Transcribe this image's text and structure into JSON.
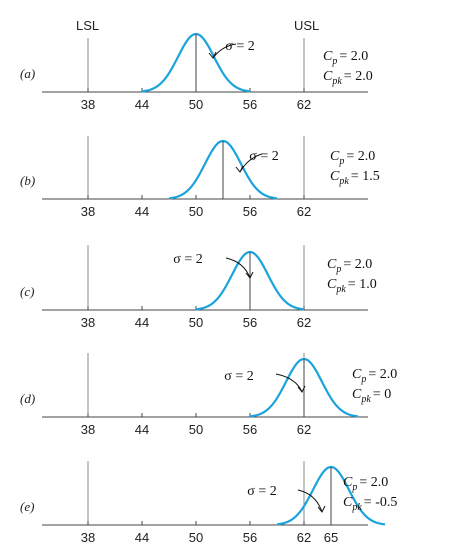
{
  "labels": {
    "lsl": "LSL",
    "usl": "USL"
  },
  "colors": {
    "curve": "#1aa3dd",
    "axis": "#444444",
    "limit": "#888888"
  },
  "axis": {
    "xmin": 33,
    "xmax": 70
  },
  "lsl_value": 38,
  "usl_value": 62,
  "panels": [
    {
      "id": "a",
      "label": "(a)",
      "mean": 50,
      "sigma": 2,
      "ticks": [
        "38",
        "44",
        "50",
        "56",
        "62"
      ],
      "tick_values": [
        38,
        44,
        50,
        56,
        62
      ],
      "sigma_label": "σ = 2",
      "cp_text": "= 2.0",
      "cpk_text": "= 2.0"
    },
    {
      "id": "b",
      "label": "(b)",
      "mean": 53,
      "sigma": 2,
      "ticks": [
        "38",
        "44",
        "50",
        "56",
        "62"
      ],
      "tick_values": [
        38,
        44,
        50,
        56,
        62
      ],
      "sigma_label": "σ = 2",
      "cp_text": "= 2.0",
      "cpk_text": "= 1.5"
    },
    {
      "id": "c",
      "label": "(c)",
      "mean": 56,
      "sigma": 2,
      "ticks": [
        "38",
        "44",
        "50",
        "56",
        "62"
      ],
      "tick_values": [
        38,
        44,
        50,
        56,
        62
      ],
      "sigma_label": "σ = 2",
      "cp_text": "= 2.0",
      "cpk_text": "= 1.0"
    },
    {
      "id": "d",
      "label": "(d)",
      "mean": 62,
      "sigma": 2,
      "ticks": [
        "38",
        "44",
        "50",
        "56",
        "62"
      ],
      "tick_values": [
        38,
        44,
        50,
        56,
        62
      ],
      "sigma_label": "σ = 2",
      "cp_text": "= 2.0",
      "cpk_text": "= 0"
    },
    {
      "id": "e",
      "label": "(e)",
      "mean": 65,
      "sigma": 2,
      "ticks": [
        "38",
        "44",
        "50",
        "56",
        "62",
        "65"
      ],
      "tick_values": [
        38,
        44,
        50,
        56,
        62,
        65
      ],
      "sigma_label": "σ = 2",
      "cp_text": "= 2.0",
      "cpk_text": "= -0.5"
    }
  ]
}
